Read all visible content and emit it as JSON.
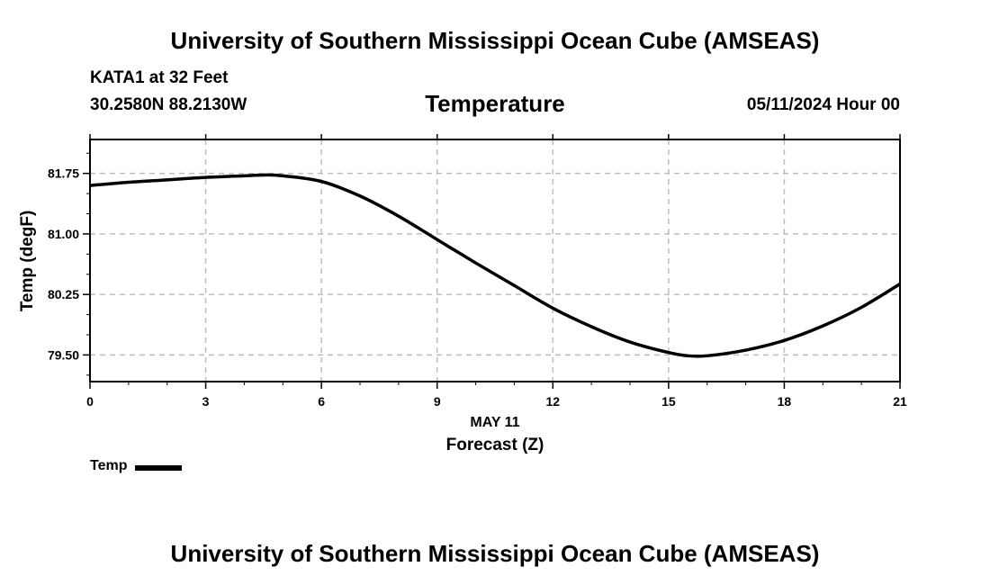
{
  "header": {
    "title": "University of Southern Mississippi Ocean Cube (AMSEAS)",
    "station": "KATA1 at 32 Feet",
    "coordinates": "30.2580N  88.2130W",
    "variable": "Temperature",
    "datetime": "05/11/2024 Hour 00"
  },
  "footer": {
    "title": "University of Southern Mississippi Ocean Cube (AMSEAS)"
  },
  "chart_data": {
    "type": "line",
    "title": "Temperature",
    "xlabel": "Forecast (Z)",
    "xlabel_date": "MAY 11",
    "ylabel": "Temp (degF)",
    "xlim": [
      0,
      21
    ],
    "ylim": [
      79.17,
      82.17
    ],
    "x_ticks": [
      0,
      3,
      6,
      9,
      12,
      15,
      18,
      21
    ],
    "x_tick_labels": [
      "0",
      "3",
      "6",
      "9",
      "12",
      "15",
      "18",
      "21"
    ],
    "y_ticks": [
      79.5,
      80.25,
      81.0,
      81.75
    ],
    "y_tick_labels": [
      "79.50",
      "80.25",
      "81.00",
      "81.75"
    ],
    "grid": true,
    "legend_position": "bottom-left",
    "series": [
      {
        "name": "Temp",
        "color": "#000000",
        "x": [
          0,
          1,
          2,
          3,
          4,
          4.5,
          5,
          6,
          7,
          8,
          9,
          10,
          11,
          12,
          13,
          14,
          15,
          15.5,
          16,
          17,
          18,
          19,
          20,
          21
        ],
        "values": [
          81.6,
          81.64,
          81.67,
          81.7,
          81.72,
          81.73,
          81.72,
          81.65,
          81.47,
          81.22,
          80.93,
          80.64,
          80.36,
          80.08,
          79.85,
          79.66,
          79.53,
          79.49,
          79.49,
          79.56,
          79.68,
          79.86,
          80.09,
          80.38
        ]
      }
    ]
  }
}
